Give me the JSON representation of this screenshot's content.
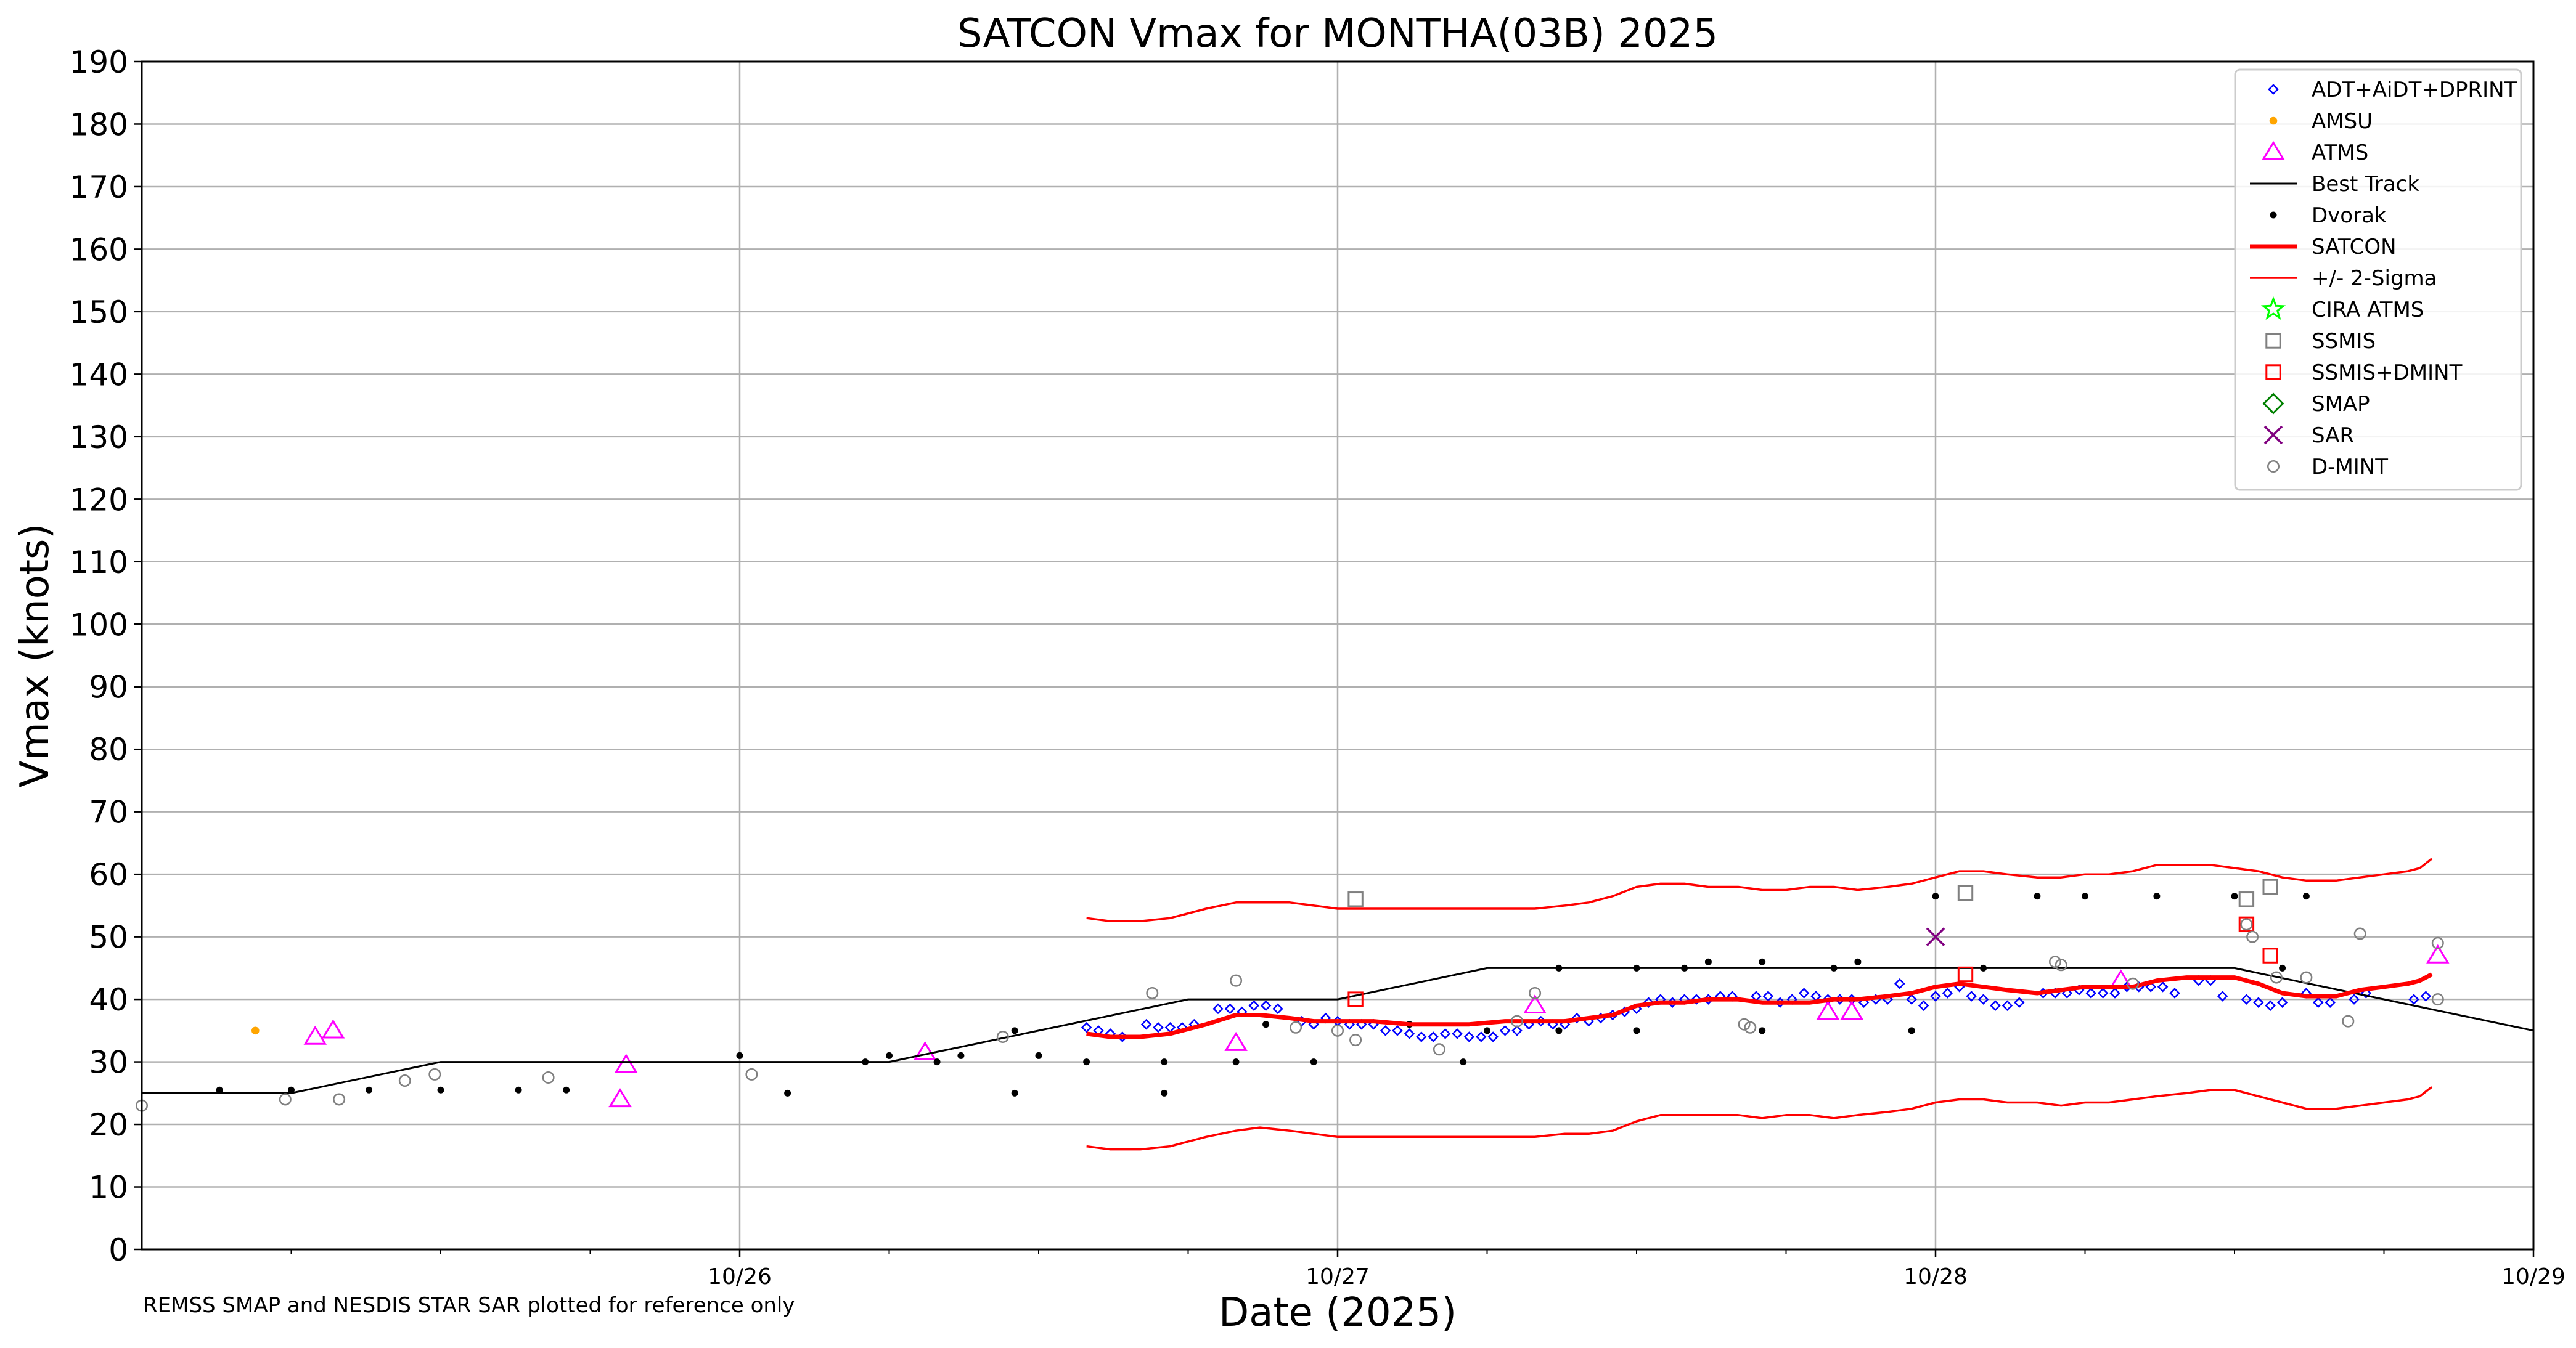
{
  "chart_data": {
    "type": "scatter",
    "title": "SATCON Vmax for MONTHA(03B) 2025",
    "xlabel": "Date (2025)",
    "ylabel": "Vmax (knots)",
    "note": "REMSS SMAP and NESDIS STAR SAR plotted for reference only",
    "xlim": [
      -1.0,
      3.0
    ],
    "x_reference": "x = days after 00 UTC 10/26",
    "ylim": [
      0,
      190
    ],
    "yticks": [
      0,
      10,
      20,
      30,
      40,
      50,
      60,
      70,
      80,
      90,
      100,
      110,
      120,
      130,
      140,
      150,
      160,
      170,
      180,
      190
    ],
    "xticks": [
      {
        "value": 0,
        "label": "10/26"
      },
      {
        "value": 1,
        "label": "10/27"
      },
      {
        "value": 2,
        "label": "10/28"
      },
      {
        "value": 3,
        "label": "10/29"
      }
    ],
    "grid": true,
    "legend_position": "top-right",
    "series": [
      {
        "name": "ADT+AiDT+DPRINT",
        "marker": "diamond",
        "color": "#0000ff",
        "x": [
          0.58,
          0.6,
          0.62,
          0.64,
          0.68,
          0.7,
          0.72,
          0.74,
          0.76,
          0.8,
          0.82,
          0.84,
          0.86,
          0.88,
          0.9,
          0.94,
          0.96,
          0.98,
          1.0,
          1.02,
          1.04,
          1.06,
          1.08,
          1.1,
          1.12,
          1.14,
          1.16,
          1.18,
          1.2,
          1.22,
          1.24,
          1.26,
          1.28,
          1.3,
          1.32,
          1.34,
          1.36,
          1.38,
          1.4,
          1.42,
          1.44,
          1.46,
          1.48,
          1.5,
          1.52,
          1.54,
          1.56,
          1.58,
          1.6,
          1.62,
          1.64,
          1.66,
          1.7,
          1.72,
          1.74,
          1.76,
          1.78,
          1.8,
          1.82,
          1.84,
          1.86,
          1.88,
          1.9,
          1.92,
          1.94,
          1.96,
          1.98,
          2.0,
          2.02,
          2.04,
          2.06,
          2.08,
          2.1,
          2.12,
          2.14,
          2.18,
          2.2,
          2.22,
          2.24,
          2.26,
          2.28,
          2.3,
          2.32,
          2.34,
          2.36,
          2.38,
          2.4,
          2.44,
          2.46,
          2.48,
          2.52,
          2.54,
          2.56,
          2.58,
          2.62,
          2.64,
          2.66,
          2.7,
          2.72,
          2.8,
          2.82
        ],
        "y": [
          35.5,
          35,
          34.5,
          34,
          36,
          35.5,
          35.5,
          35.5,
          36,
          38.5,
          38.5,
          38,
          39,
          39,
          38.5,
          36.5,
          36,
          37,
          36.5,
          36,
          36,
          36,
          35,
          35,
          34.5,
          34,
          34,
          34.5,
          34.5,
          34,
          34,
          34,
          35,
          35,
          36,
          36.5,
          36,
          36,
          37,
          36.5,
          37,
          37.5,
          38,
          38.5,
          39.5,
          40,
          39.5,
          40,
          40,
          40,
          40.5,
          40.5,
          40.5,
          40.5,
          39.5,
          40,
          41,
          40.5,
          40,
          40,
          40,
          39.5,
          40,
          40,
          42.5,
          40,
          39,
          40.5,
          41,
          42,
          40.5,
          40,
          39,
          39,
          39.5,
          41,
          41,
          41,
          41.5,
          41,
          41,
          41,
          42,
          42,
          42,
          42,
          41,
          43,
          43,
          40.5,
          40,
          39.5,
          39,
          39.5,
          41,
          39.5,
          39.5,
          40,
          41,
          40,
          40.5
        ]
      },
      {
        "name": "AMSU",
        "marker": "circle-filled",
        "color": "#ffa500",
        "x": [
          -0.81
        ],
        "y": [
          35
        ]
      },
      {
        "name": "ATMS",
        "marker": "triangle",
        "color": "#ff00ff",
        "x": [
          -0.71,
          -0.68,
          -0.2,
          -0.19,
          0.31,
          0.83,
          1.33,
          1.82,
          1.86,
          2.31,
          2.84
        ],
        "y": [
          34,
          35,
          24,
          29.5,
          31.5,
          33,
          39,
          38,
          38,
          43,
          47
        ]
      },
      {
        "name": "Best Track",
        "marker": "line",
        "color": "#000000",
        "x": [
          -1.0,
          -0.75,
          -0.5,
          0.25,
          0.75,
          1.0,
          1.25,
          2.5,
          3.0
        ],
        "y": [
          25,
          25,
          30,
          30,
          40,
          40,
          45,
          45,
          35
        ]
      },
      {
        "name": "Dvorak",
        "marker": "dot",
        "color": "#000000",
        "x": [
          -0.87,
          -0.75,
          -0.62,
          -0.5,
          -0.37,
          -0.29,
          0.0,
          0.08,
          0.21,
          0.25,
          0.33,
          0.37,
          0.46,
          0.46,
          0.5,
          0.58,
          0.71,
          0.71,
          0.83,
          0.88,
          0.96,
          1.12,
          1.21,
          1.25,
          1.37,
          1.37,
          1.5,
          1.5,
          1.58,
          1.62,
          1.71,
          1.71,
          1.83,
          1.87,
          1.96,
          2.0,
          2.08,
          2.17,
          2.25,
          2.37,
          2.5,
          2.58,
          2.62
        ],
        "y": [
          25.5,
          25.5,
          25.5,
          25.5,
          25.5,
          25.5,
          31,
          25,
          30,
          31,
          30,
          31,
          35,
          25,
          31,
          30,
          30,
          25,
          30,
          36,
          30,
          36,
          30,
          35,
          45,
          35,
          45,
          35,
          45,
          46,
          46,
          35,
          45,
          46,
          35,
          56.5,
          45,
          56.5,
          56.5,
          56.5,
          56.5,
          45,
          56.5
        ]
      },
      {
        "name": "SATCON",
        "marker": "line",
        "color": "#ff0000",
        "x": [
          0.58,
          0.62,
          0.67,
          0.72,
          0.78,
          0.83,
          0.87,
          0.92,
          0.96,
          1.0,
          1.06,
          1.12,
          1.17,
          1.22,
          1.28,
          1.33,
          1.38,
          1.42,
          1.46,
          1.5,
          1.54,
          1.58,
          1.62,
          1.67,
          1.71,
          1.75,
          1.79,
          1.83,
          1.87,
          1.92,
          1.96,
          2.0,
          2.04,
          2.08,
          2.12,
          2.17,
          2.21,
          2.25,
          2.29,
          2.33,
          2.37,
          2.42,
          2.46,
          2.5,
          2.54,
          2.58,
          2.62,
          2.67,
          2.71,
          2.75,
          2.79,
          2.81,
          2.83
        ],
        "y": [
          34.5,
          34,
          34,
          34.5,
          36,
          37.5,
          37.5,
          37,
          36.5,
          36.5,
          36.5,
          36,
          36,
          36,
          36.5,
          36.5,
          36.5,
          37,
          37.5,
          39,
          39.5,
          39.5,
          40,
          40,
          39.5,
          39.5,
          39.5,
          40,
          40,
          40.5,
          41,
          42,
          42.5,
          42,
          41.5,
          41,
          41.5,
          42,
          42,
          42,
          43,
          43.5,
          43.5,
          43.5,
          42.5,
          41,
          40.5,
          40.5,
          41.5,
          42,
          42.5,
          43,
          44
        ]
      },
      {
        "name": "+/- 2-Sigma",
        "marker": "line",
        "color": "#ff0000",
        "x": [
          0.58,
          0.62,
          0.67,
          0.72,
          0.78,
          0.83,
          0.87,
          0.92,
          0.96,
          1.0,
          1.06,
          1.12,
          1.17,
          1.22,
          1.28,
          1.33,
          1.38,
          1.42,
          1.46,
          1.5,
          1.54,
          1.58,
          1.62,
          1.67,
          1.71,
          1.75,
          1.79,
          1.83,
          1.87,
          1.92,
          1.96,
          2.0,
          2.04,
          2.08,
          2.12,
          2.17,
          2.21,
          2.25,
          2.29,
          2.33,
          2.37,
          2.42,
          2.46,
          2.5,
          2.54,
          2.58,
          2.62,
          2.67,
          2.71,
          2.75,
          2.79,
          2.81,
          2.83
        ],
        "y": [
          53,
          52.5,
          52.5,
          53,
          54.5,
          55.5,
          55.5,
          55.5,
          55,
          54.5,
          54.5,
          54.5,
          54.5,
          54.5,
          54.5,
          54.5,
          55,
          55.5,
          56.5,
          58,
          58.5,
          58.5,
          58,
          58,
          57.5,
          57.5,
          58,
          58,
          57.5,
          58,
          58.5,
          59.5,
          60.5,
          60.5,
          60,
          59.5,
          59.5,
          60,
          60,
          60.5,
          61.5,
          61.5,
          61.5,
          61,
          60.5,
          59.5,
          59,
          59,
          59.5,
          60,
          60.5,
          61,
          62.5
        ]
      },
      {
        "name": "",
        "marker": "line",
        "color": "#ff0000",
        "x": [
          0.58,
          0.62,
          0.67,
          0.72,
          0.78,
          0.83,
          0.87,
          0.92,
          0.96,
          1.0,
          1.06,
          1.12,
          1.17,
          1.22,
          1.28,
          1.33,
          1.38,
          1.42,
          1.46,
          1.5,
          1.54,
          1.58,
          1.62,
          1.67,
          1.71,
          1.75,
          1.79,
          1.83,
          1.87,
          1.92,
          1.96,
          2.0,
          2.04,
          2.08,
          2.12,
          2.17,
          2.21,
          2.25,
          2.29,
          2.33,
          2.37,
          2.42,
          2.46,
          2.5,
          2.54,
          2.58,
          2.62,
          2.67,
          2.71,
          2.75,
          2.79,
          2.81,
          2.83
        ],
        "y": [
          16.5,
          16,
          16,
          16.5,
          18,
          19,
          19.5,
          19,
          18.5,
          18,
          18,
          18,
          18,
          18,
          18,
          18,
          18.5,
          18.5,
          19,
          20.5,
          21.5,
          21.5,
          21.5,
          21.5,
          21,
          21.5,
          21.5,
          21,
          21.5,
          22,
          22.5,
          23.5,
          24,
          24,
          23.5,
          23.5,
          23,
          23.5,
          23.5,
          24,
          24.5,
          25,
          25.5,
          25.5,
          24.5,
          23.5,
          22.5,
          22.5,
          23,
          23.5,
          24,
          24.5,
          26
        ]
      },
      {
        "name": "CIRA ATMS",
        "marker": "star",
        "color": "#00ff00",
        "x": [],
        "y": []
      },
      {
        "name": "SSMIS",
        "marker": "square",
        "color": "#808080",
        "x": [
          1.03,
          2.05,
          2.52,
          2.56
        ],
        "y": [
          56,
          57,
          56,
          58
        ]
      },
      {
        "name": "SSMIS+DMINT",
        "marker": "square",
        "color": "#ff0000",
        "x": [
          1.03,
          2.05,
          2.52,
          2.56
        ],
        "y": [
          40,
          44,
          52,
          47
        ]
      },
      {
        "name": "SMAP",
        "marker": "diamond-large",
        "color": "#008000",
        "x": [],
        "y": []
      },
      {
        "name": "SAR",
        "marker": "x",
        "color": "#800080",
        "x": [
          2.0
        ],
        "y": [
          50
        ]
      },
      {
        "name": "D-MINT",
        "marker": "circle-open",
        "color": "#808080",
        "x": [
          -1.0,
          -0.76,
          -0.67,
          -0.56,
          -0.51,
          -0.32,
          0.02,
          0.44,
          0.69,
          0.83,
          0.93,
          1.0,
          1.03,
          1.17,
          1.3,
          1.33,
          1.68,
          1.69,
          2.2,
          2.21,
          2.33,
          2.52,
          2.53,
          2.57,
          2.62,
          2.69,
          2.71,
          2.84,
          2.84
        ],
        "y": [
          23,
          24,
          24,
          27,
          28,
          27.5,
          28,
          34,
          41,
          43,
          35.5,
          35,
          33.5,
          32,
          36.5,
          41,
          36,
          35.5,
          46,
          45.5,
          42.5,
          52,
          50,
          43.5,
          43.5,
          36.5,
          50.5,
          49,
          40
        ]
      }
    ]
  }
}
